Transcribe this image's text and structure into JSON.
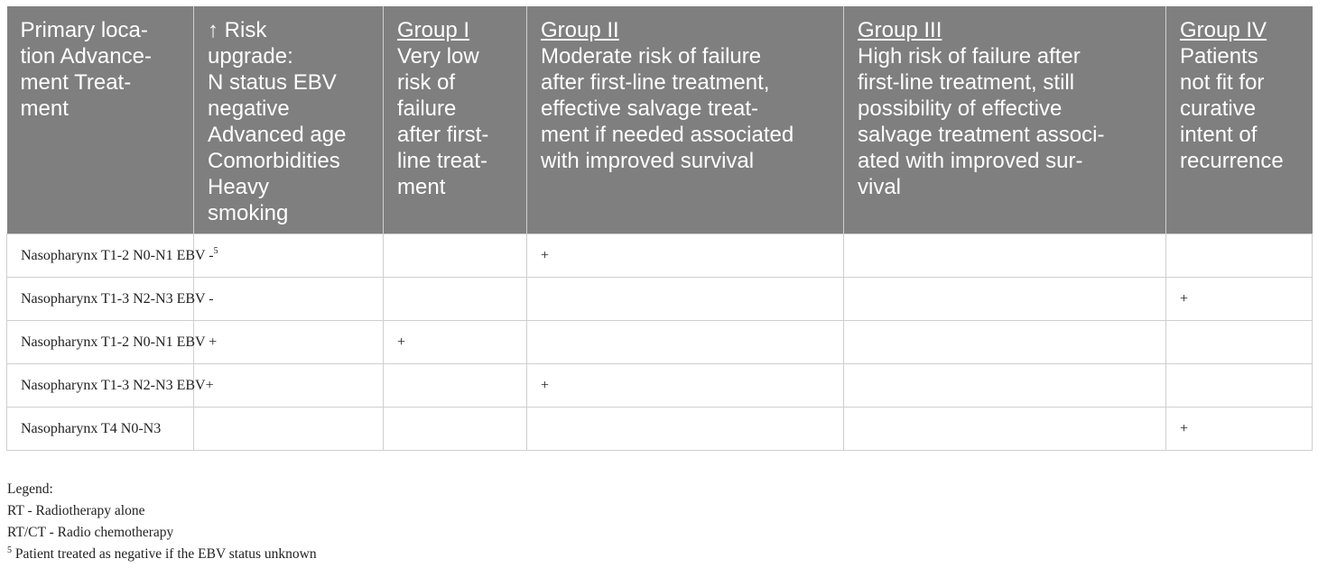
{
  "table": {
    "headers": [
      {
        "lines": [
          "Primary loca-",
          "tion Advance-",
          "ment Treat-",
          "ment"
        ]
      },
      {
        "lines": [
          "↑ Risk",
          "upgrade:",
          "N status EBV",
          "negative",
          "Advanced age",
          "Comorbidities",
          "Heavy",
          "smoking"
        ]
      },
      {
        "group": "Group I",
        "lines": [
          "Very low",
          "risk of",
          "failure",
          "after first-",
          "line treat-",
          "ment"
        ]
      },
      {
        "group": "Group II",
        "lines": [
          "Moderate risk of failure",
          "after first-line treatment,",
          "effective salvage treat-",
          "ment if needed associated",
          "with improved survival"
        ]
      },
      {
        "group": "Group III",
        "lines": [
          "High risk of failure after",
          "first-line treatment, still",
          "possibility of effective",
          "salvage treatment associ-",
          "ated with improved sur-",
          "vival"
        ]
      },
      {
        "group": "Group IV",
        "lines": [
          "Patients",
          "not fit for",
          "curative",
          "intent of",
          "recurrence"
        ]
      }
    ],
    "rows": [
      {
        "location": "Nasopharynx T1-2 N0-N1 EBV -",
        "footnote_ref": "5",
        "cells": [
          "",
          "+",
          "",
          ""
        ]
      },
      {
        "location": "Nasopharynx T1-3 N2-N3 EBV -",
        "footnote_ref": "",
        "cells": [
          "",
          "",
          "",
          "+"
        ]
      },
      {
        "location": "Nasopharynx T1-2 N0-N1 EBV +",
        "footnote_ref": "",
        "cells": [
          "+",
          "",
          "",
          ""
        ]
      },
      {
        "location": "Nasopharynx T1-3 N2-N3 EBV+",
        "footnote_ref": "",
        "cells": [
          "",
          "+",
          "",
          ""
        ]
      },
      {
        "location": "Nasopharynx T4 N0-N3",
        "footnote_ref": "",
        "cells": [
          "",
          "",
          "",
          "+"
        ]
      }
    ]
  },
  "legend": {
    "title": "Legend:",
    "items": [
      "RT - Radiotherapy alone",
      "RT/CT - Radio chemotherapy"
    ],
    "footnote_mark": "5",
    "footnote_text": "Patient treated as negative if the EBV status unknown"
  },
  "colors": {
    "header_bg": "#7f7f7f",
    "header_text": "#ffffff",
    "grid": "#cfcfcf",
    "body_text": "#222222"
  }
}
